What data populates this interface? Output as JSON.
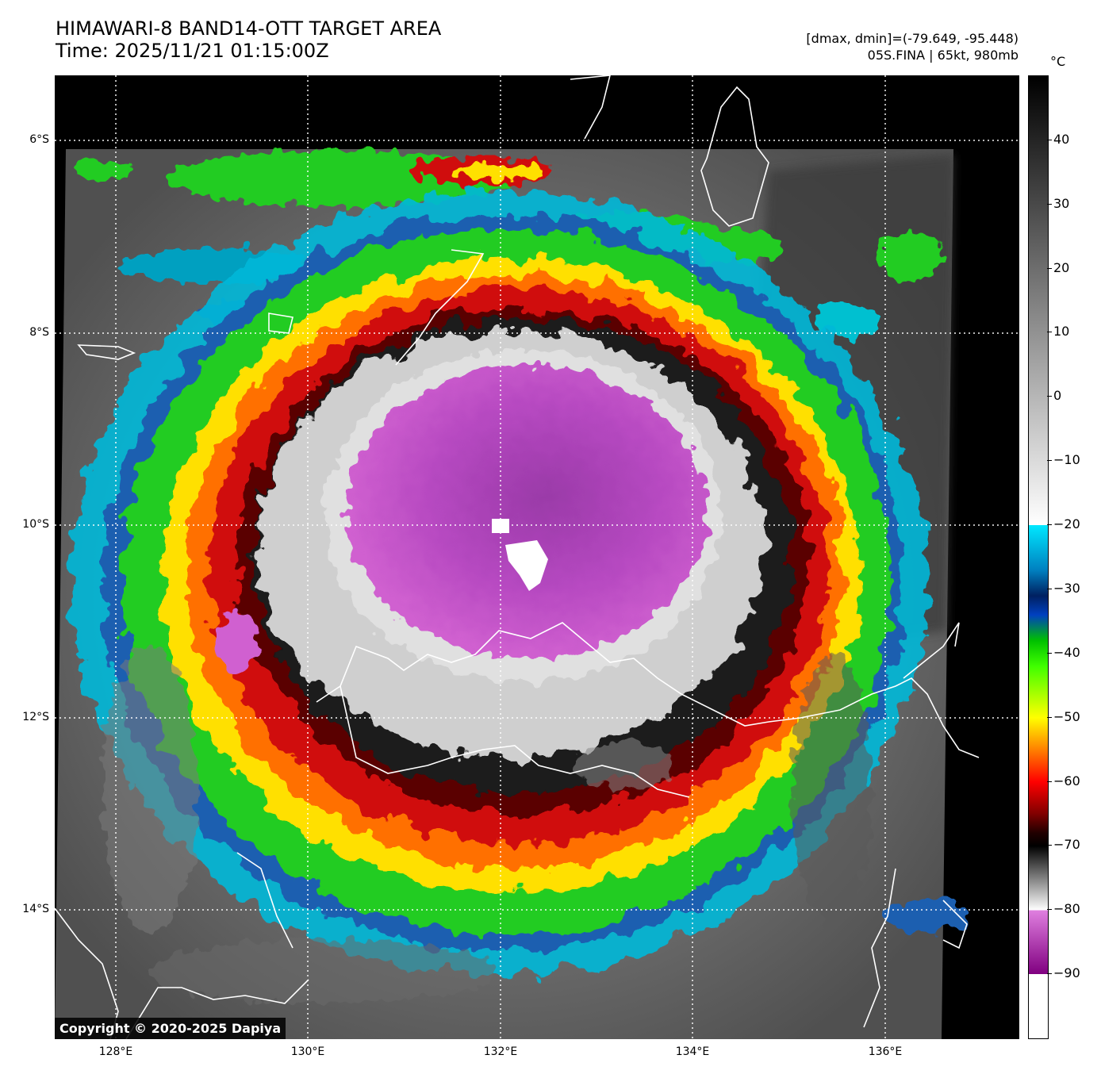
{
  "title": {
    "line1": "HIMAWARI-8 BAND14-OTT TARGET AREA",
    "line2": "Time: 2025/11/21 01:15:00Z"
  },
  "info": {
    "dmax_dmin": "[dmax, dmin]=(-79.649, -95.448)",
    "storm": "05S.FINA | 65kt, 980mb"
  },
  "copyright": "Copyright © 2020-2025 Dapiya",
  "colorbar": {
    "unit": "°C",
    "ticks": [
      "40",
      "30",
      "20",
      "10",
      "0",
      "−10",
      "−20",
      "−30",
      "−40",
      "−50",
      "−60",
      "−70",
      "−80",
      "−90"
    ],
    "tick_values": [
      40,
      30,
      20,
      10,
      0,
      -10,
      -20,
      -30,
      -40,
      -50,
      -60,
      -70,
      -80,
      -90
    ],
    "range": [
      50,
      -100
    ]
  },
  "map": {
    "lat_labels": [
      "6°S",
      "8°S",
      "10°S",
      "12°S",
      "14°S"
    ],
    "lon_labels": [
      "128°E",
      "130°E",
      "132°E",
      "134°E",
      "136°E"
    ],
    "lat_range": [
      -5.35,
      -15.35
    ],
    "lon_range": [
      127.38,
      137.38
    ],
    "storm_center": {
      "lat": -10.1,
      "lon": 132.0
    }
  },
  "colors": {
    "eye_pink": "#c050c8",
    "red": "#d01010",
    "yellow": "#ffe000",
    "green": "#22cc22",
    "cyan": "#00e0ff",
    "coastline": "#ffffff"
  }
}
